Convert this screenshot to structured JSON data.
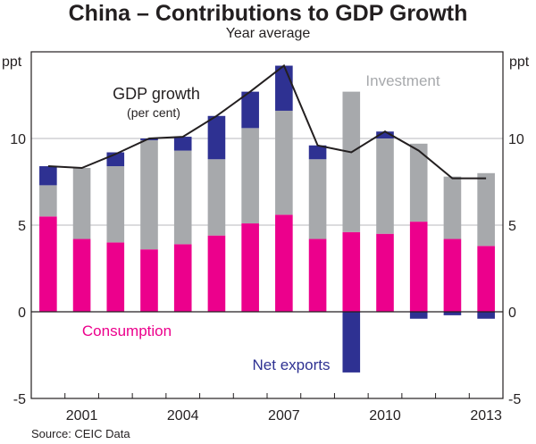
{
  "chart_data": {
    "type": "bar",
    "stacked": true,
    "title": "China – Contributions to GDP Growth",
    "subtitle": "Year average",
    "xlabel": "",
    "ylabel_left": "ppt",
    "ylabel_right": "ppt",
    "ylim": [
      -5,
      15
    ],
    "yticks": [
      -5,
      0,
      5,
      10
    ],
    "grid": true,
    "categories": [
      "2000",
      "2001",
      "2002",
      "2003",
      "2004",
      "2005",
      "2006",
      "2007",
      "2008",
      "2009",
      "2010",
      "2011",
      "2012",
      "2013"
    ],
    "xtick_labels": [
      "2001",
      "2004",
      "2007",
      "2010",
      "2013"
    ],
    "series": [
      {
        "name": "Consumption",
        "color": "#ec008c",
        "values": [
          5.5,
          4.2,
          4.0,
          3.6,
          3.9,
          4.4,
          5.1,
          5.6,
          4.2,
          4.6,
          4.5,
          5.2,
          4.2,
          3.8
        ]
      },
      {
        "name": "Investment",
        "color": "#a7a9ac",
        "values": [
          1.8,
          4.1,
          4.4,
          6.3,
          5.4,
          4.4,
          5.5,
          6.0,
          4.6,
          8.1,
          5.5,
          4.5,
          3.6,
          4.2
        ]
      },
      {
        "name": "Net exports",
        "color": "#2e3192",
        "values": [
          1.1,
          0.0,
          0.8,
          0.1,
          0.8,
          2.5,
          2.1,
          2.6,
          0.8,
          -3.5,
          0.4,
          -0.4,
          -0.2,
          -0.4
        ]
      }
    ],
    "line": {
      "name": "GDP growth (per cent)",
      "color": "#231f20",
      "values": [
        8.4,
        8.3,
        9.1,
        10.0,
        10.1,
        11.3,
        12.7,
        14.2,
        9.6,
        9.2,
        10.4,
        9.3,
        7.7,
        7.7
      ]
    },
    "annotations": [
      {
        "text": "GDP growth",
        "color": "#231f20"
      },
      {
        "text": "(per cent)",
        "color": "#231f20"
      },
      {
        "text": "Investment",
        "color": "#a7a9ac"
      },
      {
        "text": "Consumption",
        "color": "#ec008c"
      },
      {
        "text": "Net exports",
        "color": "#2e3192"
      }
    ],
    "source": "Source: CEIC Data"
  }
}
